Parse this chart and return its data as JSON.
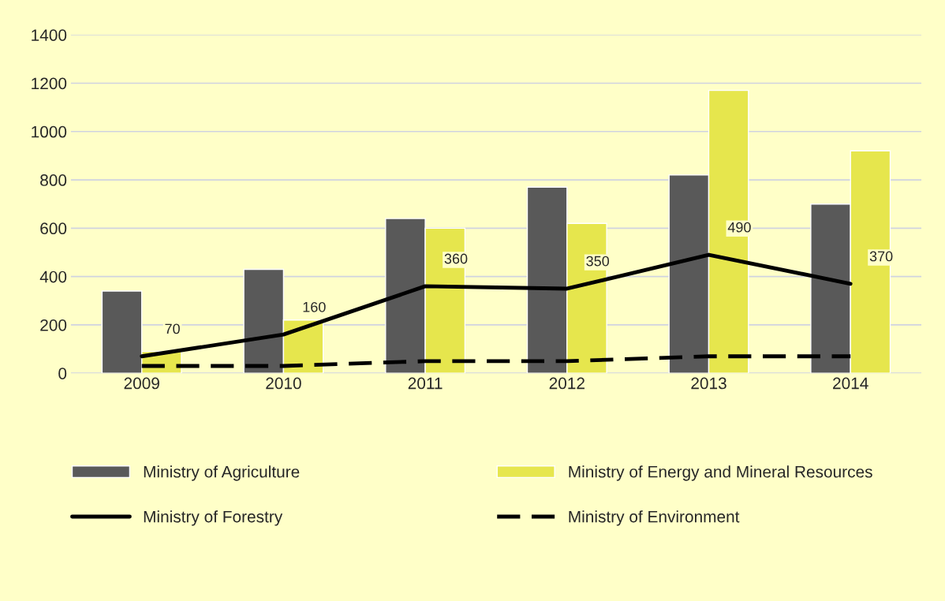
{
  "chart_data": {
    "type": "bar",
    "categories": [
      "2009",
      "2010",
      "2011",
      "2012",
      "2013",
      "2014"
    ],
    "series": [
      {
        "name": "Ministry of Agriculture",
        "color": "#595959",
        "values": [
          340,
          430,
          640,
          770,
          820,
          700
        ]
      },
      {
        "name": "Ministry of Energy and Mineral Resources",
        "color": "#e6e64d",
        "values": [
          90,
          220,
          600,
          620,
          1170,
          920
        ]
      },
      {
        "name": "Ministry of Forestry",
        "type": "line",
        "color": "#000000",
        "line_style": "solid",
        "values": [
          70,
          160,
          360,
          350,
          490,
          370
        ],
        "value_labels": [
          "70",
          "160",
          "360",
          "350",
          "490",
          "370"
        ]
      },
      {
        "name": "Ministry of Environment",
        "type": "line",
        "color": "#000000",
        "line_style": "dashed",
        "values": [
          30,
          30,
          50,
          50,
          70,
          70
        ]
      }
    ],
    "ylim": [
      0,
      1400
    ],
    "yticks": [
      0,
      200,
      400,
      600,
      800,
      1000,
      1200,
      1400
    ],
    "grid": "y",
    "legend": "bottom"
  }
}
